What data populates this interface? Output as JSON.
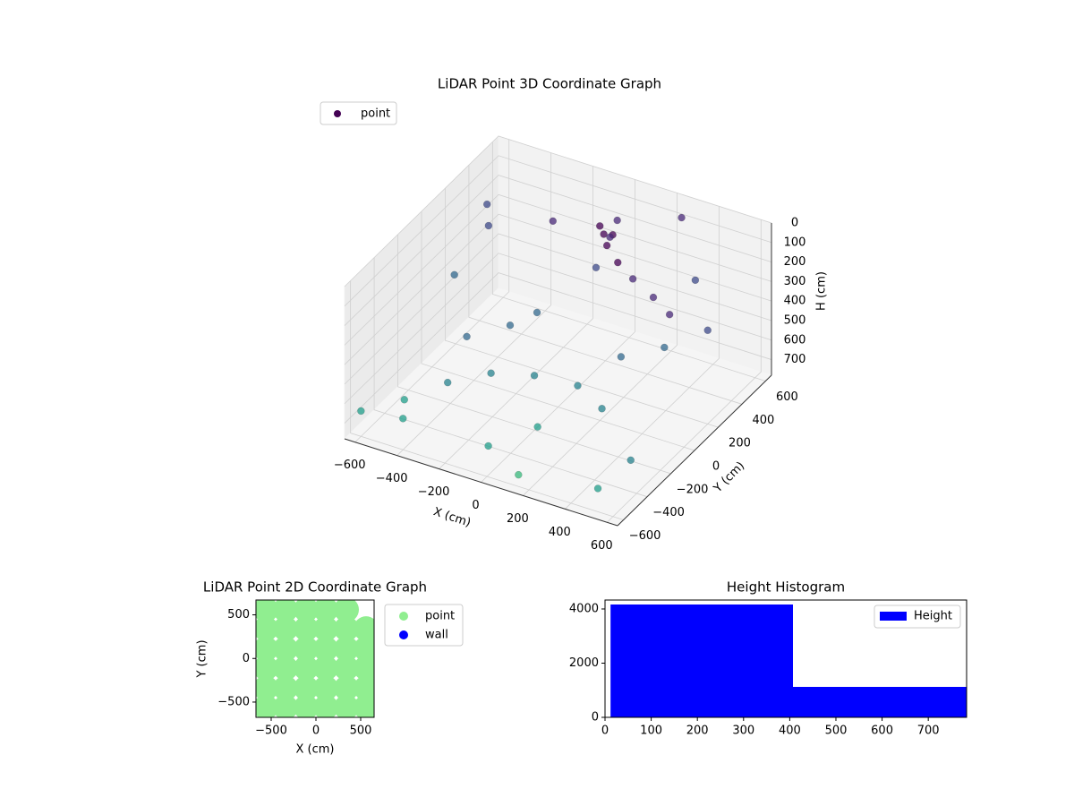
{
  "chart_data": [
    {
      "type": "scatter3d",
      "title": "LiDAR Point 3D Coordinate Graph",
      "x_label": "X (cm)",
      "y_label": "Y (cm)",
      "z_label": "H (cm)",
      "xlim": [
        -650,
        650
      ],
      "ylim": [
        -650,
        650
      ],
      "zlim": [
        780,
        0
      ],
      "xticks": [
        {
          "value": -600,
          "label": "−600"
        },
        {
          "value": -400,
          "label": "−400"
        },
        {
          "value": -200,
          "label": "−200"
        },
        0,
        200,
        400,
        600
      ],
      "yticks": [
        {
          "value": -600,
          "label": "−600"
        },
        {
          "value": -400,
          "label": "−400"
        },
        {
          "value": -200,
          "label": "−200"
        },
        0,
        200,
        400,
        600
      ],
      "zticks": [
        0,
        100,
        200,
        300,
        400,
        500,
        600,
        700
      ],
      "colormap": "viridis",
      "grid": true,
      "legend": "upper left",
      "series": [
        {
          "name": "point",
          "color": "#440154",
          "x": [
            -600,
            -450,
            -300,
            -150,
            0,
            150,
            300,
            450,
            600,
            -500,
            -250,
            0,
            250,
            500,
            -550,
            -200,
            100,
            350,
            600,
            30,
            60,
            80,
            50,
            40,
            120,
            200,
            300,
            420,
            520,
            -100,
            -350,
            -620,
            150,
            400,
            -50,
            -400
          ],
          "y": [
            -600,
            -500,
            -400,
            -300,
            -200,
            -100,
            0,
            100,
            200,
            300,
            400,
            500,
            600,
            -550,
            100,
            -50,
            -350,
            -250,
            -450,
            300,
            280,
            320,
            350,
            250,
            200,
            150,
            100,
            60,
            20,
            0,
            -150,
            500,
            -600,
            450,
            -500,
            -600
          ],
          "z": [
            650,
            600,
            520,
            480,
            500,
            560,
            420,
            380,
            300,
            200,
            150,
            120,
            80,
            700,
            350,
            400,
            640,
            520,
            580,
            20,
            40,
            60,
            100,
            200,
            30,
            60,
            80,
            110,
            140,
            330,
            450,
            250,
            720,
            260,
            700,
            620
          ]
        }
      ]
    },
    {
      "type": "scatter",
      "title": "LiDAR Point 2D Coordinate Graph",
      "x_label": "X (cm)",
      "y_label": "Y (cm)",
      "xlim": [
        -670,
        650
      ],
      "ylim": [
        -675,
        670
      ],
      "xticks": [
        {
          "value": -500,
          "label": "−500"
        },
        0,
        500
      ],
      "yticks": [
        {
          "value": -500,
          "label": "−500"
        },
        0,
        500
      ],
      "legend": "outside right",
      "series": [
        {
          "name": "point",
          "color": "lightgreen",
          "x": [
            -560,
            -340,
            -110,
            110,
            340,
            -560,
            -340,
            -110,
            110,
            340,
            560,
            -560,
            -340,
            -110,
            110,
            340,
            560,
            -560,
            -340,
            -110,
            110,
            340,
            560,
            -560,
            -340,
            -110,
            110,
            340,
            560,
            -560,
            -340,
            -110,
            110,
            340,
            560
          ],
          "y": [
            560,
            560,
            560,
            560,
            560,
            340,
            340,
            340,
            340,
            340,
            340,
            110,
            110,
            110,
            110,
            110,
            110,
            -110,
            -110,
            -110,
            -110,
            -110,
            -110,
            -340,
            -340,
            -340,
            -340,
            -340,
            -340,
            -560,
            -560,
            -560,
            -560,
            -560,
            -560
          ]
        },
        {
          "name": "wall",
          "color": "blue",
          "x": [],
          "y": []
        }
      ]
    },
    {
      "type": "histogram",
      "title": "Height Histogram",
      "name": "Height",
      "color": "blue",
      "bins": [
        12,
        407,
        783
      ],
      "counts": [
        4165,
        1124
      ],
      "xlim": [
        0,
        783
      ],
      "ylim": [
        0,
        4330
      ],
      "xticks": [
        0,
        100,
        200,
        300,
        400,
        500,
        600,
        700
      ],
      "yticks": [
        0,
        2000,
        4000
      ],
      "legend": "upper right"
    }
  ]
}
